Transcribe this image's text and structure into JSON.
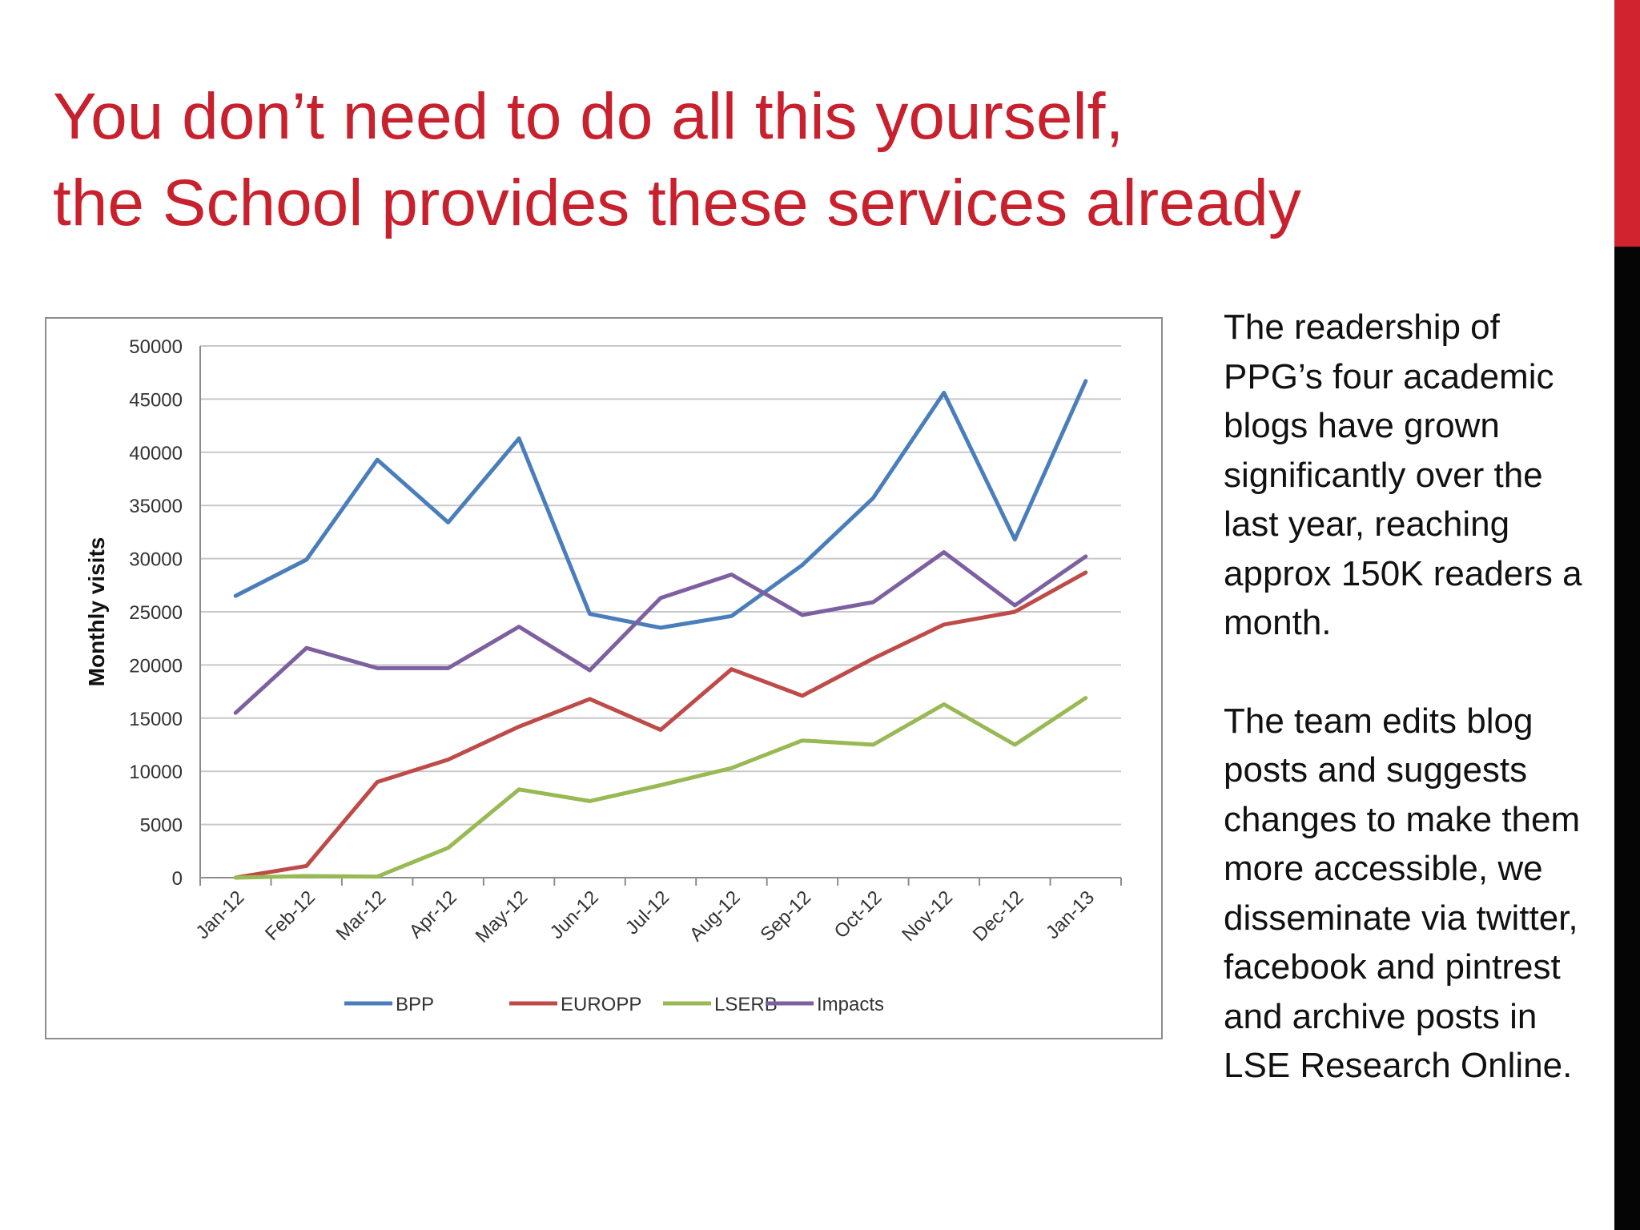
{
  "slide": {
    "title_line1": "You don’t need to do all this yourself,",
    "title_line2": "the School provides these services already",
    "paragraph1": "The readership of PPG’s four academic blogs have grown significantly over the last year, reaching approx 150K readers a month.",
    "paragraph2": "The team edits blog posts and suggests changes to make them more accessible, we disseminate via twitter, facebook and pintrest and archive posts in LSE Research Online.",
    "accent_color": "#d1232f",
    "title_color": "#c8202d"
  },
  "chart_data": {
    "type": "line",
    "title": "",
    "xlabel": "",
    "ylabel": "Monthly visits",
    "ylim": [
      0,
      50000
    ],
    "yticks": [
      0,
      5000,
      10000,
      15000,
      20000,
      25000,
      30000,
      35000,
      40000,
      45000,
      50000
    ],
    "ytick_labels": [
      "0",
      "5000",
      "10000",
      "15000",
      "20000",
      "25000",
      "30000",
      "35000",
      "40000",
      "45000",
      "50000"
    ],
    "grid": true,
    "legend_position": "bottom",
    "categories": [
      "Jan-12",
      "Feb-12",
      "Mar-12",
      "Apr-12",
      "May-12",
      "Jun-12",
      "Jul-12",
      "Aug-12",
      "Sep-12",
      "Oct-12",
      "Nov-12",
      "Dec-12",
      "Jan-13"
    ],
    "series": [
      {
        "name": "BPP",
        "color": "#4a7ebb",
        "values": [
          26500,
          29900,
          39300,
          33400,
          41300,
          24800,
          23500,
          24600,
          29400,
          35700,
          45600,
          31800,
          46700
        ]
      },
      {
        "name": "EUROPP",
        "color": "#be4b48",
        "values": [
          0,
          1100,
          9000,
          11100,
          14200,
          16800,
          13900,
          19600,
          17100,
          20600,
          23800,
          25000,
          28700
        ]
      },
      {
        "name": "LSERB",
        "color": "#98b954",
        "values": [
          0,
          150,
          100,
          2800,
          8300,
          7200,
          8700,
          10300,
          12900,
          12500,
          16300,
          12500,
          16900
        ]
      },
      {
        "name": "Impacts",
        "color": "#7d60a0",
        "values": [
          15500,
          21600,
          19700,
          19700,
          23600,
          19500,
          26300,
          28500,
          24700,
          25900,
          30600,
          25600,
          30200
        ]
      }
    ]
  }
}
